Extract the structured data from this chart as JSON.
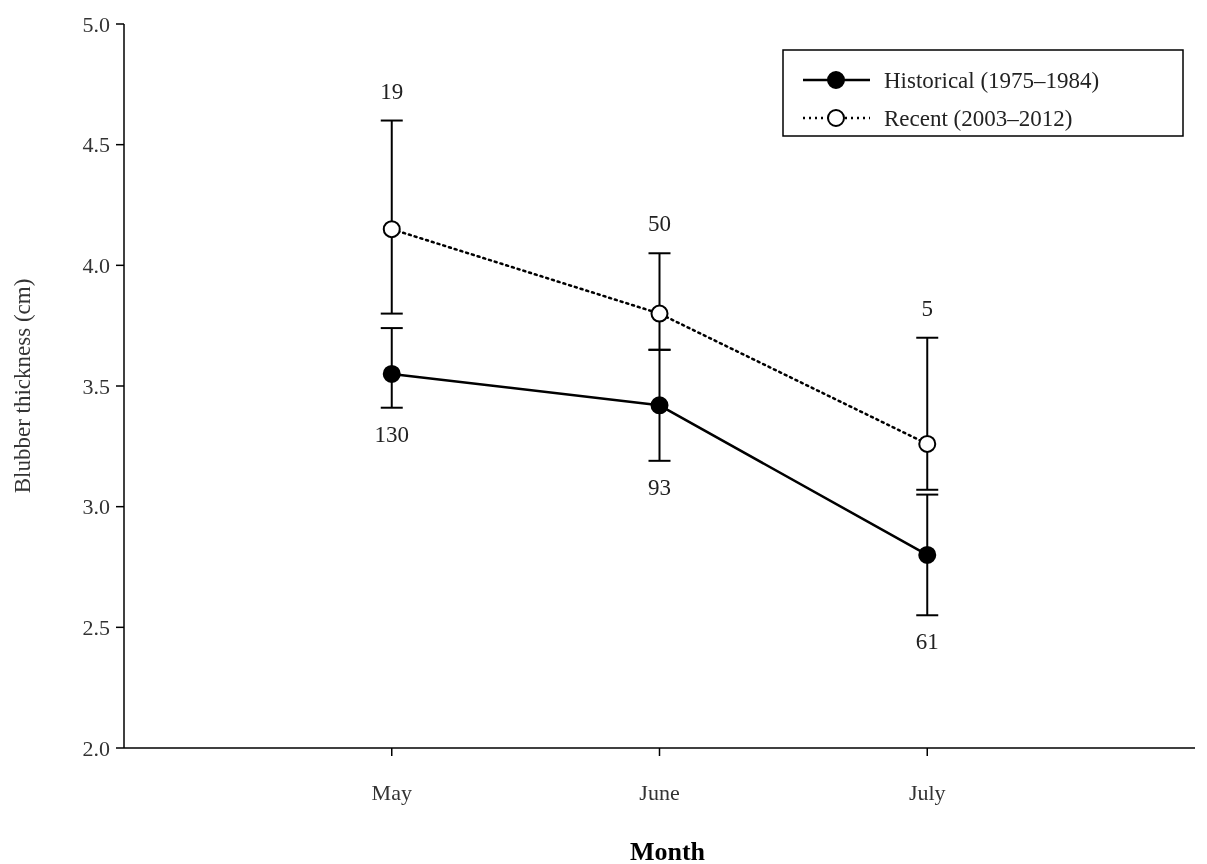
{
  "chart_data": {
    "type": "line",
    "xlabel": "Month",
    "ylabel": "Blubber thickness (cm)",
    "categories": [
      "May",
      "June",
      "July"
    ],
    "series": [
      {
        "name": "Historical (1975–1984)",
        "color": "#000000",
        "line_style": "solid",
        "values": [
          3.55,
          3.42,
          2.8
        ],
        "errors": [
          [
            3.41,
            3.74
          ],
          [
            3.19,
            3.65
          ],
          [
            2.55,
            3.05
          ]
        ]
      },
      {
        "name": "Recent (2003–2012)",
        "color": "#000000",
        "line_style": "dotted",
        "values": [
          4.15,
          3.8,
          3.26
        ],
        "errors": [
          [
            3.8,
            4.6
          ],
          [
            3.65,
            4.05
          ],
          [
            3.07,
            3.7
          ]
        ]
      }
    ],
    "marker": "circle",
    "ylim": [
      2.0,
      5.0
    ],
    "yticks": [
      {
        "value": 2,
        "label": "2.0"
      },
      {
        "value": 2.5,
        "label": "2.5"
      },
      {
        "value": 3,
        "label": "3.0"
      },
      {
        "value": 3.5,
        "label": "3.5"
      },
      {
        "value": 4,
        "label": "4.0"
      },
      {
        "value": 4.5,
        "label": "4.5"
      },
      {
        "value": 5,
        "label": "5.0"
      }
    ],
    "grid": false,
    "legend": "top right",
    "annotations": [
      {
        "text": "19",
        "x": "May",
        "y": 4.6
      },
      {
        "text": "130",
        "x": "May",
        "y": 3.41
      },
      {
        "text": "50",
        "x": "June",
        "y": 4.05
      },
      {
        "text": "93",
        "x": "June",
        "y": 3.19
      },
      {
        "text": "5",
        "x": "July",
        "y": 3.7
      },
      {
        "text": "61",
        "x": "July",
        "y": 2.55
      }
    ]
  }
}
